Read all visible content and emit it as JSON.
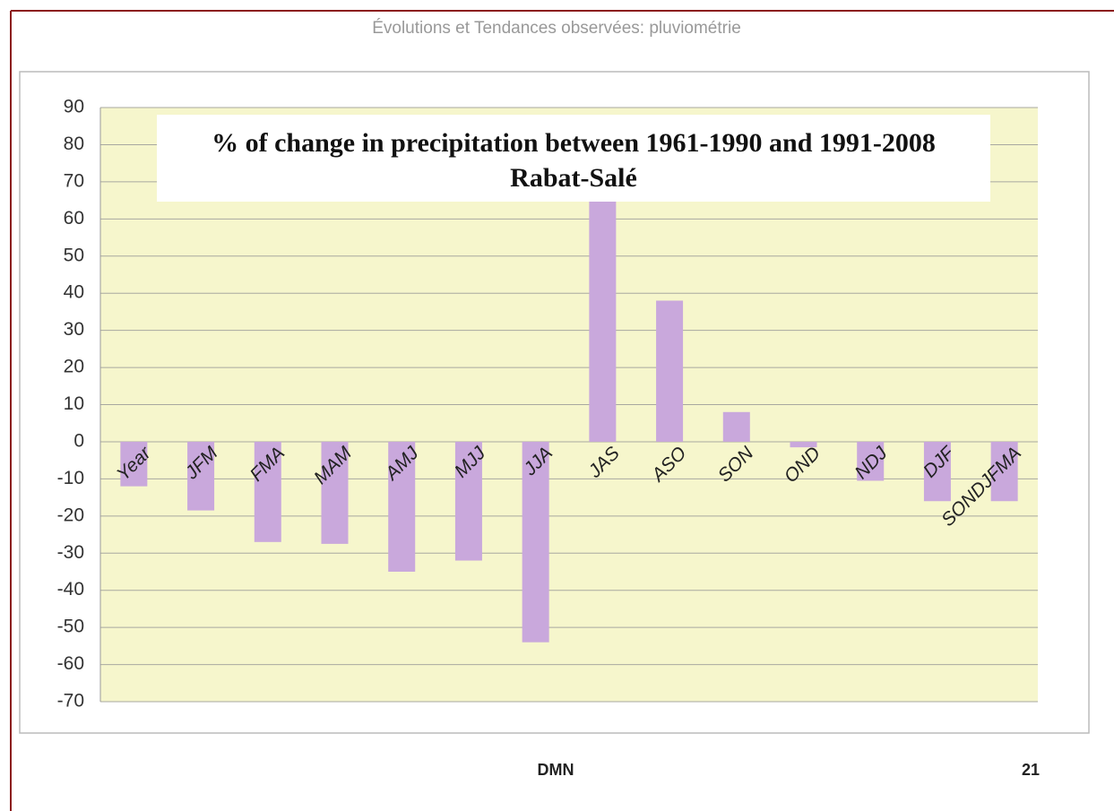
{
  "header": {
    "title": "Évolutions et Tendances observées: pluviométrie"
  },
  "footer": {
    "source": "DMN",
    "page": "21"
  },
  "chart_data": {
    "type": "bar",
    "title": "% of change in precipitation between 1961-1990 and 1991-2008",
    "subtitle": "Rabat-Salé",
    "categories": [
      "Year",
      "JFM",
      "FMA",
      "MAM",
      "AMJ",
      "MJJ",
      "JJA",
      "JAS",
      "ASO",
      "SON",
      "OND",
      "NDJ",
      "DJF",
      "SONDJFMA"
    ],
    "values": [
      -12,
      -18.5,
      -27,
      -27.5,
      -35,
      -32,
      -54,
      65,
      38,
      8,
      -1.5,
      -10.5,
      -16,
      -16
    ],
    "color": "#c9a8dc",
    "ylim": [
      -70,
      90
    ],
    "yticks": [
      -70,
      -60,
      -50,
      -40,
      -30,
      -20,
      -10,
      0,
      10,
      20,
      30,
      40,
      50,
      60,
      70,
      80,
      90
    ],
    "grid": true
  }
}
